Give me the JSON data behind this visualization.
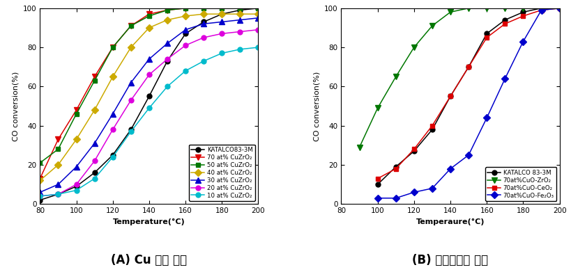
{
  "panel_A": {
    "xlabel": "Temperature(°C)",
    "ylabel": "CO conversion(%)",
    "xlim": [
      80,
      200
    ],
    "ylim": [
      0,
      100
    ],
    "xticks": [
      80,
      100,
      120,
      140,
      160,
      180,
      200
    ],
    "yticks": [
      0,
      20,
      40,
      60,
      80,
      100
    ],
    "caption": "(A) Cu 함량 변화",
    "series": [
      {
        "label": "KATALCO83-3M",
        "color": "#000000",
        "marker": "o",
        "x": [
          80,
          90,
          100,
          110,
          120,
          130,
          140,
          150,
          160,
          170,
          180,
          190,
          200
        ],
        "y": [
          2,
          5,
          9,
          16,
          25,
          38,
          55,
          73,
          87,
          93,
          97,
          99,
          100
        ]
      },
      {
        "label": "70 at% CuZrO₂",
        "color": "#dd0000",
        "marker": "v",
        "x": [
          80,
          90,
          100,
          110,
          120,
          130,
          140,
          150,
          160,
          170,
          180,
          190,
          200
        ],
        "y": [
          13,
          33,
          48,
          65,
          80,
          91,
          97,
          99,
          100,
          100,
          100,
          100,
          100
        ]
      },
      {
        "label": "50 at% CuZrO₂",
        "color": "#007700",
        "marker": "s",
        "x": [
          80,
          90,
          100,
          110,
          120,
          130,
          140,
          150,
          160,
          170,
          180,
          190,
          200
        ],
        "y": [
          21,
          28,
          46,
          63,
          80,
          91,
          96,
          99,
          100,
          100,
          100,
          100,
          100
        ]
      },
      {
        "label": "40 at% CuZrO₂",
        "color": "#ccaa00",
        "marker": "D",
        "x": [
          80,
          90,
          100,
          110,
          120,
          130,
          140,
          150,
          160,
          170,
          180,
          190,
          200
        ],
        "y": [
          12,
          20,
          33,
          48,
          65,
          80,
          90,
          94,
          96,
          97,
          97,
          97,
          97
        ]
      },
      {
        "label": "30 at% CuZrO₂",
        "color": "#0000cc",
        "marker": "^",
        "x": [
          80,
          90,
          100,
          110,
          120,
          130,
          140,
          150,
          160,
          170,
          180,
          190,
          200
        ],
        "y": [
          6,
          10,
          19,
          31,
          46,
          62,
          74,
          82,
          89,
          92,
          93,
          94,
          95
        ]
      },
      {
        "label": "20 at% CuZrO₂",
        "color": "#dd00dd",
        "marker": "o",
        "x": [
          80,
          90,
          100,
          110,
          120,
          130,
          140,
          150,
          160,
          170,
          180,
          190,
          200
        ],
        "y": [
          4,
          5,
          10,
          22,
          38,
          53,
          66,
          74,
          81,
          85,
          87,
          88,
          89
        ]
      },
      {
        "label": "10 at% CuZrO₂",
        "color": "#00bbcc",
        "marker": "o",
        "x": [
          80,
          90,
          100,
          110,
          120,
          130,
          140,
          150,
          160,
          170,
          180,
          190,
          200
        ],
        "y": [
          4,
          5,
          7,
          13,
          24,
          37,
          49,
          60,
          68,
          73,
          77,
          79,
          80
        ]
      }
    ]
  },
  "panel_B": {
    "xlabel": "Temperaure(°C)",
    "ylabel": "CO conversion(%)",
    "xlim": [
      80,
      200
    ],
    "ylim": [
      0,
      100
    ],
    "xticks": [
      80,
      100,
      120,
      140,
      160,
      180,
      200
    ],
    "yticks": [
      0,
      20,
      40,
      60,
      80,
      100
    ],
    "caption": "(B) 혼합산화물 변화",
    "series": [
      {
        "label": "KATALCO 83-3M",
        "color": "#000000",
        "marker": "o",
        "x": [
          100,
          110,
          120,
          130,
          140,
          150,
          160,
          170,
          180,
          190,
          200
        ],
        "y": [
          10,
          19,
          27,
          38,
          55,
          70,
          87,
          94,
          98,
          100,
          100
        ]
      },
      {
        "label": "70at%CuO-ZrO₂",
        "color": "#007700",
        "marker": "v",
        "x": [
          90,
          100,
          110,
          120,
          130,
          140,
          150,
          160,
          170,
          180,
          190,
          200
        ],
        "y": [
          29,
          49,
          65,
          80,
          91,
          98,
          100,
          100,
          100,
          100,
          100,
          100
        ]
      },
      {
        "label": "70at%CuO-CeO₂",
        "color": "#dd0000",
        "marker": "s",
        "x": [
          100,
          110,
          120,
          130,
          140,
          150,
          160,
          170,
          180,
          190,
          200
        ],
        "y": [
          13,
          18,
          28,
          40,
          55,
          70,
          85,
          92,
          96,
          99,
          100
        ]
      },
      {
        "label": "70at%CuO-Fe₂O₃",
        "color": "#0000cc",
        "marker": "D",
        "x": [
          100,
          110,
          120,
          130,
          140,
          150,
          160,
          170,
          180,
          190,
          200
        ],
        "y": [
          3,
          3,
          6,
          8,
          18,
          25,
          44,
          64,
          83,
          99,
          100
        ]
      }
    ]
  },
  "fig_width": 8.19,
  "fig_height": 3.91,
  "dpi": 100
}
